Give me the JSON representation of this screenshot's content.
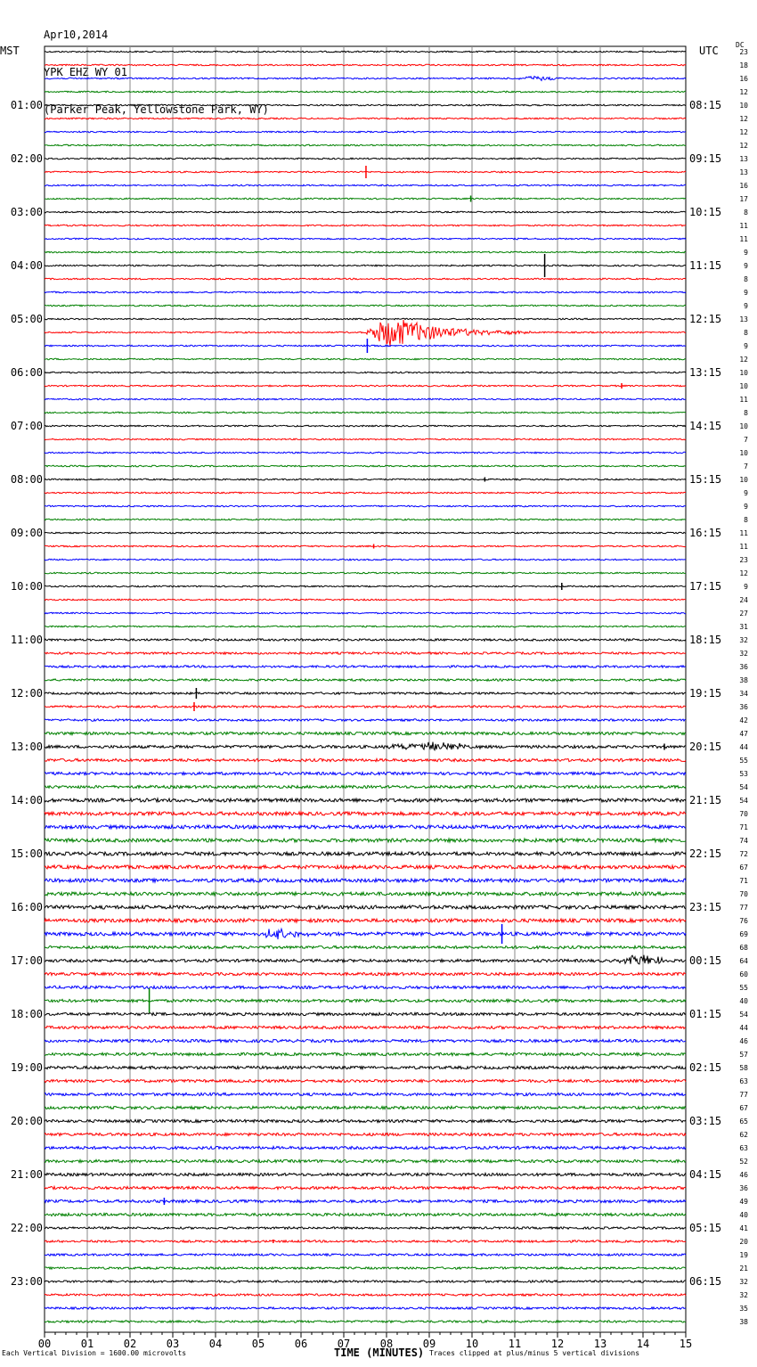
{
  "header": {
    "date": "Apr10,2014",
    "station": "YPK EHZ WY 01",
    "location": "(Parker Peak, Yellowstone Park, WY)"
  },
  "left_axis_label": "MST",
  "right_axis_label": "UTC",
  "dc_label": "DC",
  "footer": {
    "scale_note": "Each Vertical Division = 1600.00 microvolts",
    "xlabel": "TIME (MINUTES)",
    "clip_note": "Traces clipped at plus/minus 5 vertical divisions"
  },
  "colors": [
    "#000000",
    "#ff0000",
    "#0000ff",
    "#008000"
  ],
  "chart_data": {
    "type": "line",
    "title": "YPK EHZ WY 01",
    "xlabel": "TIME (MINUTES)",
    "xlim": [
      0,
      15
    ],
    "x_ticks": [
      "00",
      "01",
      "02",
      "03",
      "04",
      "05",
      "06",
      "07",
      "08",
      "09",
      "10",
      "11",
      "12",
      "13",
      "14",
      "15"
    ],
    "left_hour_labels": [
      "01:00",
      "02:00",
      "03:00",
      "04:00",
      "05:00",
      "06:00",
      "07:00",
      "08:00",
      "09:00",
      "10:00",
      "11:00",
      "12:00",
      "13:00",
      "14:00",
      "15:00",
      "16:00",
      "17:00",
      "18:00",
      "19:00",
      "20:00",
      "21:00",
      "22:00",
      "23:00"
    ],
    "right_hour_labels": [
      "08:15",
      "09:15",
      "10:15",
      "11:15",
      "12:15",
      "13:15",
      "14:15",
      "15:15",
      "16:15",
      "17:15",
      "18:15",
      "19:15",
      "20:15",
      "21:15",
      "22:15",
      "23:15",
      "00:15",
      "01:15",
      "02:15",
      "03:15",
      "04:15",
      "05:15",
      "06:15"
    ],
    "dc_offsets": [
      "23",
      "18",
      "16",
      "12",
      "10",
      "12",
      "12",
      "12",
      "13",
      "13",
      "16",
      "17",
      "8",
      "11",
      "11",
      "9",
      "9",
      "8",
      "9",
      "9",
      "13",
      "8",
      "9",
      "12",
      "10",
      "10",
      "11",
      "8",
      "10",
      "7",
      "10",
      "7",
      "10",
      "9",
      "9",
      "8",
      "11",
      "11",
      "23",
      "12",
      "9",
      "24",
      "27",
      "31",
      "32",
      "32",
      "36",
      "38",
      "34",
      "36",
      "42",
      "47",
      "44",
      "55",
      "53",
      "54",
      "54",
      "70",
      "71",
      "74",
      "72",
      "67",
      "71",
      "70",
      "77",
      "76",
      "69",
      "68",
      "64",
      "60",
      "55",
      "40",
      "54",
      "44",
      "46",
      "57",
      "58",
      "63",
      "77",
      "67",
      "65",
      "62",
      "63",
      "52",
      "46",
      "36",
      "49",
      "40",
      "41",
      "20",
      "19",
      "21",
      "32",
      "32",
      "35",
      "38"
    ],
    "noise_level": [
      1,
      1,
      1,
      1,
      1,
      1,
      1,
      1,
      1,
      1,
      1,
      1,
      1,
      1,
      1,
      1,
      1,
      1,
      1,
      1,
      1,
      1,
      1,
      1,
      1,
      1,
      1,
      1,
      1,
      1,
      1,
      1,
      1,
      1,
      1,
      1,
      1,
      1,
      1,
      1,
      1,
      1,
      1,
      1,
      1.5,
      1.5,
      1.5,
      1.5,
      1.5,
      1.5,
      1.5,
      2,
      2,
      2,
      2,
      2,
      2.5,
      2.5,
      2.5,
      2.5,
      2.5,
      2.5,
      2.5,
      2.5,
      2.5,
      2.5,
      2.5,
      2,
      2,
      2,
      2,
      2,
      2,
      2,
      2,
      2,
      2,
      2,
      2,
      2,
      2,
      2,
      2,
      2,
      2,
      2,
      2,
      2,
      1.5,
      1.5,
      1.5,
      1.5,
      1.5,
      1.5,
      1.5,
      1.5
    ],
    "events": [
      {
        "line": 2,
        "start": 11.0,
        "duration": 1.1,
        "amp": 2.5,
        "type": "burst"
      },
      {
        "line": 9,
        "start": 7.52,
        "amp": 14,
        "type": "spike"
      },
      {
        "line": 11,
        "start": 9.97,
        "amp": 7,
        "type": "spike"
      },
      {
        "line": 16,
        "start": 11.7,
        "amp": 26,
        "type": "spike"
      },
      {
        "line": 21,
        "start": 7.5,
        "duration": 4.0,
        "amp": 30,
        "type": "quake"
      },
      {
        "line": 22,
        "start": 7.55,
        "amp": 16,
        "type": "spike"
      },
      {
        "line": 25,
        "start": 13.5,
        "amp": 6,
        "type": "spike"
      },
      {
        "line": 32,
        "start": 10.3,
        "amp": 5,
        "type": "spike"
      },
      {
        "line": 37,
        "start": 7.7,
        "amp": 5,
        "type": "spike"
      },
      {
        "line": 40,
        "start": 12.1,
        "amp": 8,
        "type": "spike"
      },
      {
        "line": 48,
        "start": 3.55,
        "amp": 12,
        "type": "spike"
      },
      {
        "line": 49,
        "start": 3.5,
        "amp": 10,
        "type": "spike"
      },
      {
        "line": 52,
        "start": 7.8,
        "duration": 2.5,
        "amp": 4,
        "type": "burst"
      },
      {
        "line": 52,
        "start": 14.5,
        "amp": 7,
        "type": "spike"
      },
      {
        "line": 66,
        "start": 5.1,
        "duration": 1.7,
        "amp": 12,
        "type": "quake"
      },
      {
        "line": 66,
        "start": 10.7,
        "amp": 22,
        "type": "spike"
      },
      {
        "line": 68,
        "start": 13.4,
        "duration": 1.2,
        "amp": 6,
        "type": "burst"
      },
      {
        "line": 71,
        "start": 2.45,
        "amp": 28,
        "type": "spike"
      },
      {
        "line": 86,
        "start": 2.8,
        "amp": 8,
        "type": "spike"
      },
      {
        "line": 89,
        "start": 5.35,
        "amp": 4,
        "type": "spike"
      }
    ]
  }
}
